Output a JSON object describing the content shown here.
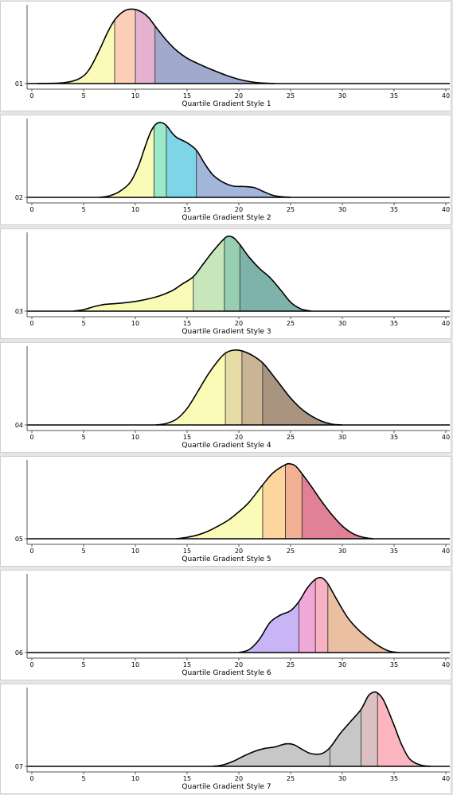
{
  "chart_data": {
    "type": "area",
    "xlim": [
      0,
      40
    ],
    "ylim": [
      0,
      1
    ],
    "xticks": [
      0,
      5,
      10,
      15,
      20,
      25,
      30,
      35,
      40
    ],
    "grid": false,
    "panels": [
      {
        "category": "01",
        "xlabel": "Quartile Gradient Style 1",
        "quartiles": [
          8.0,
          10.0,
          11.9
        ],
        "colors": [
          "#fbfbb8",
          "#fcd0b8",
          "#e4b2cf",
          "#a1a9cd"
        ],
        "curve": [
          [
            0.5,
            0
          ],
          [
            3,
            0.01
          ],
          [
            4.5,
            0.06
          ],
          [
            5.5,
            0.18
          ],
          [
            6.5,
            0.44
          ],
          [
            7.3,
            0.68
          ],
          [
            8,
            0.85
          ],
          [
            8.7,
            0.95
          ],
          [
            9.3,
            0.99
          ],
          [
            10,
            0.99
          ],
          [
            10.7,
            0.95
          ],
          [
            11.3,
            0.88
          ],
          [
            11.9,
            0.77
          ],
          [
            13,
            0.58
          ],
          [
            14,
            0.44
          ],
          [
            15,
            0.34
          ],
          [
            16,
            0.27
          ],
          [
            17.5,
            0.18
          ],
          [
            19,
            0.1
          ],
          [
            20.5,
            0.04
          ],
          [
            22,
            0.01
          ],
          [
            23.5,
            0
          ]
        ]
      },
      {
        "category": "02",
        "xlabel": "Quartile Gradient Style 2",
        "quartiles": [
          11.8,
          13.0,
          15.9
        ],
        "colors": [
          "#fbfbb8",
          "#9ae9c8",
          "#7ed5e8",
          "#a2b6da"
        ],
        "curve": [
          [
            6.5,
            0
          ],
          [
            7.5,
            0.02
          ],
          [
            8.5,
            0.08
          ],
          [
            9.5,
            0.2
          ],
          [
            10.3,
            0.42
          ],
          [
            11,
            0.7
          ],
          [
            11.5,
            0.88
          ],
          [
            12,
            0.98
          ],
          [
            12.5,
            1.0
          ],
          [
            13,
            0.96
          ],
          [
            13.5,
            0.87
          ],
          [
            14,
            0.8
          ],
          [
            15,
            0.73
          ],
          [
            15.9,
            0.63
          ],
          [
            16.7,
            0.45
          ],
          [
            17.5,
            0.3
          ],
          [
            18.5,
            0.2
          ],
          [
            19.5,
            0.15
          ],
          [
            20.5,
            0.145
          ],
          [
            21.5,
            0.13
          ],
          [
            22.5,
            0.07
          ],
          [
            23.5,
            0.02
          ],
          [
            25,
            0
          ]
        ]
      },
      {
        "category": "03",
        "xlabel": "Quartile Gradient Style 3",
        "quartiles": [
          15.6,
          18.6,
          20.1
        ],
        "colors": [
          "#fbfbb8",
          "#c8e6bb",
          "#98cfb1",
          "#7eb3ab"
        ],
        "curve": [
          [
            4,
            0
          ],
          [
            5,
            0.02
          ],
          [
            6,
            0.06
          ],
          [
            7,
            0.09
          ],
          [
            8,
            0.1
          ],
          [
            10,
            0.13
          ],
          [
            12,
            0.19
          ],
          [
            13.5,
            0.27
          ],
          [
            14.5,
            0.36
          ],
          [
            15.6,
            0.46
          ],
          [
            16.5,
            0.62
          ],
          [
            17.5,
            0.8
          ],
          [
            18.6,
            0.97
          ],
          [
            19,
            1.0
          ],
          [
            19.5,
            0.98
          ],
          [
            20.1,
            0.89
          ],
          [
            21,
            0.72
          ],
          [
            22,
            0.57
          ],
          [
            23,
            0.45
          ],
          [
            24,
            0.29
          ],
          [
            25,
            0.12
          ],
          [
            26,
            0.03
          ],
          [
            27,
            0
          ]
        ]
      },
      {
        "category": "04",
        "xlabel": "Quartile Gradient Style 4",
        "quartiles": [
          18.7,
          20.3,
          22.3
        ],
        "colors": [
          "#fbfbb8",
          "#e7dba6",
          "#c9b595",
          "#a99480"
        ],
        "curve": [
          [
            12,
            0
          ],
          [
            13,
            0.02
          ],
          [
            14,
            0.08
          ],
          [
            15,
            0.22
          ],
          [
            16,
            0.44
          ],
          [
            17,
            0.67
          ],
          [
            18,
            0.86
          ],
          [
            18.7,
            0.96
          ],
          [
            19.5,
            1.0
          ],
          [
            20.3,
            0.99
          ],
          [
            21.3,
            0.93
          ],
          [
            22.3,
            0.83
          ],
          [
            23.2,
            0.68
          ],
          [
            24.2,
            0.5
          ],
          [
            25,
            0.36
          ],
          [
            26,
            0.22
          ],
          [
            27,
            0.12
          ],
          [
            28,
            0.05
          ],
          [
            29,
            0.01
          ],
          [
            30,
            0
          ]
        ]
      },
      {
        "category": "05",
        "xlabel": "Quartile Gradient Style 5",
        "quartiles": [
          22.3,
          24.5,
          26.1
        ],
        "colors": [
          "#fbfbb8",
          "#fdd69e",
          "#f3b095",
          "#e18197"
        ],
        "curve": [
          [
            14,
            0
          ],
          [
            15,
            0.02
          ],
          [
            16,
            0.05
          ],
          [
            17,
            0.1
          ],
          [
            18,
            0.17
          ],
          [
            19,
            0.25
          ],
          [
            20,
            0.36
          ],
          [
            21,
            0.49
          ],
          [
            22.3,
            0.72
          ],
          [
            23.3,
            0.88
          ],
          [
            24.5,
            0.99
          ],
          [
            25,
            1.0
          ],
          [
            25.5,
            0.97
          ],
          [
            26.1,
            0.87
          ],
          [
            27,
            0.7
          ],
          [
            28,
            0.5
          ],
          [
            29,
            0.32
          ],
          [
            30,
            0.17
          ],
          [
            31,
            0.07
          ],
          [
            32,
            0.02
          ],
          [
            33,
            0
          ]
        ]
      },
      {
        "category": "06",
        "xlabel": "Quartile Gradient Style 6",
        "quartiles": [
          25.8,
          27.4,
          28.6
        ],
        "colors": [
          "#c9b5f5",
          "#f0a8d9",
          "#f7b3c4",
          "#ebbfa1"
        ],
        "curve": [
          [
            20,
            0
          ],
          [
            21,
            0.04
          ],
          [
            22,
            0.18
          ],
          [
            23,
            0.4
          ],
          [
            24,
            0.5
          ],
          [
            25,
            0.56
          ],
          [
            25.8,
            0.68
          ],
          [
            26.6,
            0.86
          ],
          [
            27.4,
            0.98
          ],
          [
            28,
            1.0
          ],
          [
            28.6,
            0.92
          ],
          [
            29.5,
            0.7
          ],
          [
            30.5,
            0.47
          ],
          [
            31.5,
            0.31
          ],
          [
            32.5,
            0.19
          ],
          [
            33.5,
            0.09
          ],
          [
            34.5,
            0.02
          ],
          [
            35.5,
            0
          ]
        ]
      },
      {
        "category": "07",
        "xlabel": "Quartile Gradient Style 7",
        "quartiles": [
          28.8,
          31.8,
          33.4
        ],
        "colors": [
          "#c7c7c7",
          "#c7c7c7",
          "#dac0c3",
          "#fbb6bf"
        ],
        "curve": [
          [
            17.5,
            0
          ],
          [
            18.5,
            0.02
          ],
          [
            19.5,
            0.07
          ],
          [
            20.5,
            0.14
          ],
          [
            21.5,
            0.2
          ],
          [
            22.5,
            0.24
          ],
          [
            23.5,
            0.26
          ],
          [
            24.5,
            0.3
          ],
          [
            25.3,
            0.29
          ],
          [
            26.2,
            0.22
          ],
          [
            27,
            0.17
          ],
          [
            28,
            0.17
          ],
          [
            28.8,
            0.25
          ],
          [
            29.8,
            0.44
          ],
          [
            30.8,
            0.6
          ],
          [
            31.8,
            0.76
          ],
          [
            32.5,
            0.94
          ],
          [
            33,
            0.99
          ],
          [
            33.4,
            0.98
          ],
          [
            34,
            0.88
          ],
          [
            35,
            0.55
          ],
          [
            35.7,
            0.3
          ],
          [
            36.5,
            0.1
          ],
          [
            37.5,
            0.02
          ],
          [
            38.5,
            0
          ]
        ]
      }
    ]
  }
}
